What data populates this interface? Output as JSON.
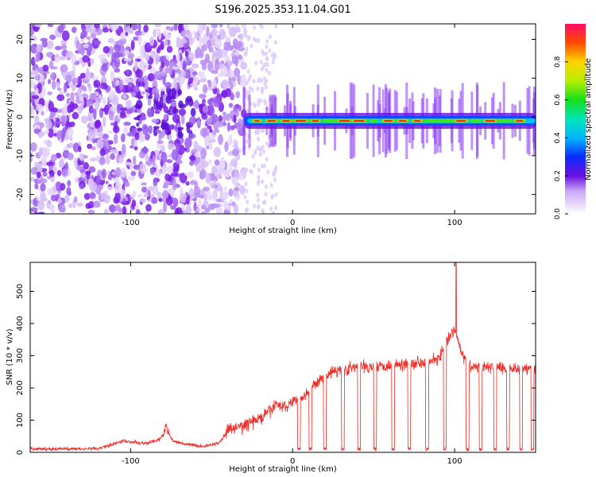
{
  "title": "S196.2025.353.11.04.G01",
  "colors": {
    "snr_line": "#ee2a24",
    "spec_low": "#7a1fe6",
    "spec_band": "#0b5cff"
  },
  "chart_data": [
    {
      "type": "heatmap",
      "xlabel": "Height of straight line (km)",
      "ylabel": "Frequency (Hz)",
      "xlim": [
        -162,
        150
      ],
      "ylim": [
        -25,
        24
      ],
      "xticks": [
        -100,
        0,
        100
      ],
      "yticks": [
        -20,
        -10,
        0,
        10,
        20
      ],
      "colorbar": {
        "label": "Normalized spectral amplitude",
        "range": [
          0,
          1
        ],
        "ticks": [
          0.0,
          0.2,
          0.4,
          0.6,
          0.8
        ]
      },
      "band": {
        "center_freq_hz": -1,
        "x_start": -30,
        "x_end": 150
      },
      "scatter_region": {
        "x_start": -162,
        "x_end": -30
      }
    },
    {
      "type": "line",
      "xlabel": "Height of straight line (km)",
      "ylabel": "SNR (10 * v/v)",
      "xlim": [
        -162,
        150
      ],
      "ylim": [
        0,
        590
      ],
      "xticks": [
        -100,
        0,
        100
      ],
      "yticks": [
        0,
        100,
        200,
        300,
        400,
        500
      ],
      "series": [
        {
          "name": "SNR",
          "segments": [
            {
              "x": [
                -162,
                -120,
                -105,
                -95,
                -90,
                -82,
                -78,
                -74,
                -65,
                -55,
                -45,
                -40,
                -32,
                -25,
                -18,
                -10,
                -4,
                0,
                6,
                12,
                18,
                24,
                40,
                60,
                80,
                90,
                95,
                100,
                105,
                110,
                150
              ],
              "level": [
                10,
                12,
                35,
                30,
                28,
                40,
                75,
                35,
                25,
                18,
                30,
                70,
                80,
                95,
                110,
                150,
                140,
                160,
                170,
                200,
                230,
                250,
                265,
                270,
                280,
                290,
                340,
                380,
                300,
                265,
                260
              ]
            }
          ],
          "dips_x": [
            4,
            11,
            20,
            31,
            41,
            51,
            62,
            72,
            83,
            94,
            108,
            116,
            125,
            133,
            141,
            148
          ],
          "peak": {
            "x": 101,
            "y": 590
          }
        }
      ]
    }
  ]
}
